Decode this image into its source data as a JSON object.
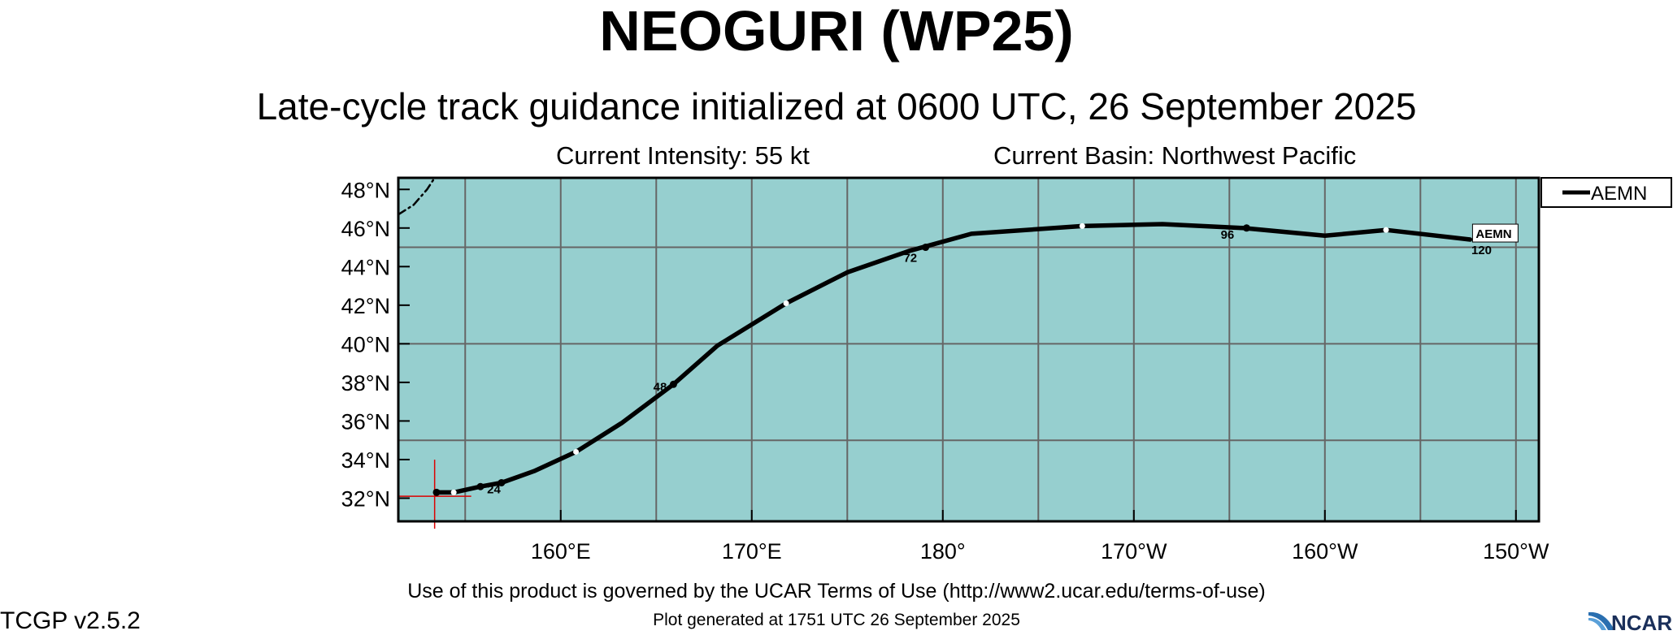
{
  "header": {
    "title": "NEOGURI (WP25)",
    "subtitle": "Late-cycle track guidance initialized at 0600 UTC, 26 September 2025",
    "intensity": "Current Intensity: 55 kt",
    "basin": "Current Basin: Northwest Pacific"
  },
  "map": {
    "projection": "equirectangular",
    "lon_range": [
      151.5,
      211.2
    ],
    "lat_range": [
      30.8,
      48.6
    ],
    "background_color": "#96cfcf",
    "grid_color": "#666666",
    "lat_ticks": [
      {
        "value": 48,
        "label": "48°N"
      },
      {
        "value": 46,
        "label": "46°N"
      },
      {
        "value": 44,
        "label": "44°N"
      },
      {
        "value": 42,
        "label": "42°N"
      },
      {
        "value": 40,
        "label": "40°N"
      },
      {
        "value": 38,
        "label": "38°N"
      },
      {
        "value": 36,
        "label": "36°N"
      },
      {
        "value": 34,
        "label": "34°N"
      },
      {
        "value": 32,
        "label": "32°N"
      }
    ],
    "lon_ticks": [
      {
        "value": 160,
        "label": "160°E"
      },
      {
        "value": 170,
        "label": "170°E"
      },
      {
        "value": 180,
        "label": "180°"
      },
      {
        "value": 190,
        "label": "170°W"
      },
      {
        "value": 200,
        "label": "160°W"
      },
      {
        "value": 210,
        "label": "150°W"
      }
    ],
    "grid_lons": [
      155,
      160,
      165,
      170,
      175,
      180,
      185,
      190,
      195,
      200,
      205,
      210
    ],
    "grid_lats": [
      35,
      40,
      45
    ],
    "current_position": {
      "lon": 153.4,
      "lat": 32.1,
      "color": "#dd0000"
    }
  },
  "chart_data": {
    "type": "track",
    "series": [
      {
        "name": "AEMN",
        "color": "#000000",
        "points": [
          {
            "lon": 153.5,
            "lat": 32.3
          },
          {
            "lon": 154.4,
            "lat": 32.3
          },
          {
            "lon": 155.8,
            "lat": 32.6
          },
          {
            "lon": 156.9,
            "lat": 32.8
          },
          {
            "lon": 158.6,
            "lat": 33.4
          },
          {
            "lon": 160.8,
            "lat": 34.4
          },
          {
            "lon": 163.2,
            "lat": 35.9
          },
          {
            "lon": 165.9,
            "lat": 37.9
          },
          {
            "lon": 168.2,
            "lat": 39.9
          },
          {
            "lon": 171.8,
            "lat": 42.1
          },
          {
            "lon": 175.0,
            "lat": 43.7
          },
          {
            "lon": 178.2,
            "lat": 44.8
          },
          {
            "lon": 181.5,
            "lat": 45.7
          },
          {
            "lon": 187.3,
            "lat": 46.1
          },
          {
            "lon": 191.5,
            "lat": 46.2
          },
          {
            "lon": 195.7,
            "lat": 46.0
          },
          {
            "lon": 200.0,
            "lat": 45.6
          },
          {
            "lon": 203.2,
            "lat": 45.9
          },
          {
            "lon": 207.6,
            "lat": 45.4
          }
        ],
        "white_markers": [
          {
            "lon": 154.4,
            "lat": 32.3
          },
          {
            "lon": 160.8,
            "lat": 34.4
          },
          {
            "lon": 171.8,
            "lat": 42.1
          },
          {
            "lon": 187.3,
            "lat": 46.1
          },
          {
            "lon": 203.2,
            "lat": 45.9
          }
        ],
        "black_markers": [
          {
            "lon": 153.5,
            "lat": 32.3
          },
          {
            "lon": 155.8,
            "lat": 32.6
          },
          {
            "lon": 156.9,
            "lat": 32.8
          },
          {
            "lon": 165.9,
            "lat": 37.9
          },
          {
            "lon": 179.1,
            "lat": 45.0
          },
          {
            "lon": 195.9,
            "lat": 46.0
          }
        ],
        "hour_labels": [
          {
            "label": "24",
            "lon": 156.5,
            "lat": 32.5
          },
          {
            "label": "48",
            "lon": 165.2,
            "lat": 37.8
          },
          {
            "label": "72",
            "lon": 178.3,
            "lat": 44.5
          },
          {
            "label": "96",
            "lon": 194.9,
            "lat": 45.7
          },
          {
            "label": "120",
            "lon": 208.2,
            "lat": 44.9
          }
        ],
        "end_label": "AEMN"
      },
      {
        "name": "",
        "style": "dashdot",
        "color": "#000000",
        "points": [
          {
            "lon": 151.5,
            "lat": 46.7
          },
          {
            "lon": 152.3,
            "lat": 47.2
          },
          {
            "lon": 153.0,
            "lat": 48.0
          },
          {
            "lon": 153.4,
            "lat": 48.6
          }
        ]
      }
    ],
    "legend": {
      "position": "top-right",
      "entries": [
        "AEMN"
      ]
    }
  },
  "footer": {
    "terms": "Use of this product is governed by the UCAR Terms of Use (http://www2.ucar.edu/terms-of-use)",
    "generated": "Plot generated at 1751 UTC   26 September 2025",
    "version": "TCGP v2.5.2",
    "logo_text": "NCAR"
  }
}
